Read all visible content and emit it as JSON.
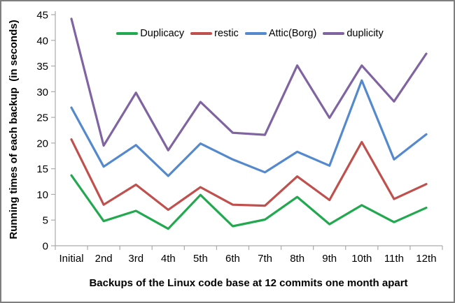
{
  "frame": {
    "border_color": "#7f7f7f",
    "background_color": "#ffffff"
  },
  "chart_data": {
    "type": "line",
    "title": "",
    "xlabel": "Backups of the Linux code base at 12 commits one month apart",
    "ylabel": "Running times of each backup  (in seconds)",
    "categories": [
      "Initial",
      "2nd",
      "3rd",
      "4th",
      "5th",
      "6th",
      "7th",
      "8th",
      "9th",
      "10th",
      "11th",
      "12th"
    ],
    "ylim": [
      0,
      45
    ],
    "ytick_step": 5,
    "ytick_labels": [
      "0",
      "5",
      "10",
      "15",
      "20",
      "25",
      "30",
      "35",
      "40",
      "45"
    ],
    "grid": false,
    "legend_position": "top-center",
    "axis_color": "#ababab",
    "text_color": "#000000",
    "line_width": 3.2,
    "series": [
      {
        "name": "Duplicacy",
        "color": "#22a94f",
        "values": [
          13.7,
          4.8,
          6.8,
          3.3,
          9.9,
          3.8,
          5.1,
          9.5,
          4.2,
          7.9,
          4.6,
          7.4
        ]
      },
      {
        "name": "restic",
        "color": "#c0504d",
        "values": [
          20.7,
          8.0,
          11.9,
          7.0,
          11.4,
          8.0,
          7.8,
          13.5,
          8.9,
          20.2,
          9.1,
          12.0
        ]
      },
      {
        "name": "Attic(Borg)",
        "color": "#5589ce",
        "values": [
          26.9,
          15.4,
          19.6,
          13.6,
          19.9,
          16.8,
          14.3,
          18.3,
          15.6,
          32.2,
          16.8,
          21.7
        ]
      },
      {
        "name": "duplicity",
        "color": "#8064a2",
        "values": [
          44.2,
          19.5,
          29.8,
          18.6,
          28.0,
          22.0,
          21.6,
          35.1,
          24.9,
          35.1,
          28.1,
          37.4
        ]
      }
    ]
  }
}
